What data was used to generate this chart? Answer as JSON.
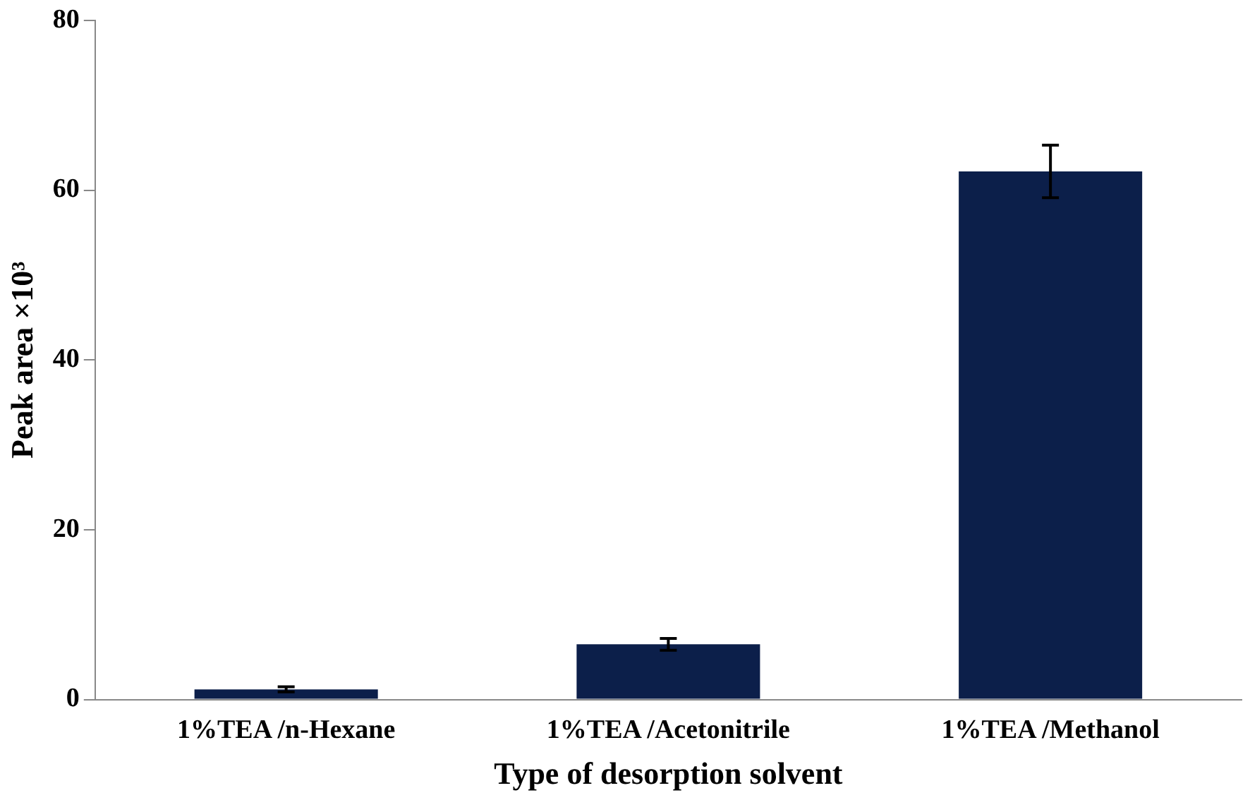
{
  "chart_data": {
    "type": "bar",
    "xlabel": "Type of desorption solvent",
    "ylabel": "Peak area ×10³",
    "categories": [
      "1%TEA /n-Hexane",
      "1%TEA /Acetonitrile",
      "1%TEA /Methanol"
    ],
    "values": [
      1.2,
      6.5,
      62.2
    ],
    "errors": [
      0.3,
      0.7,
      3.1
    ],
    "color": "#0c1f4a",
    "ylim": [
      0,
      80
    ],
    "yticks": [
      0,
      20,
      40,
      60,
      80
    ],
    "grid": false,
    "legend": false
  }
}
